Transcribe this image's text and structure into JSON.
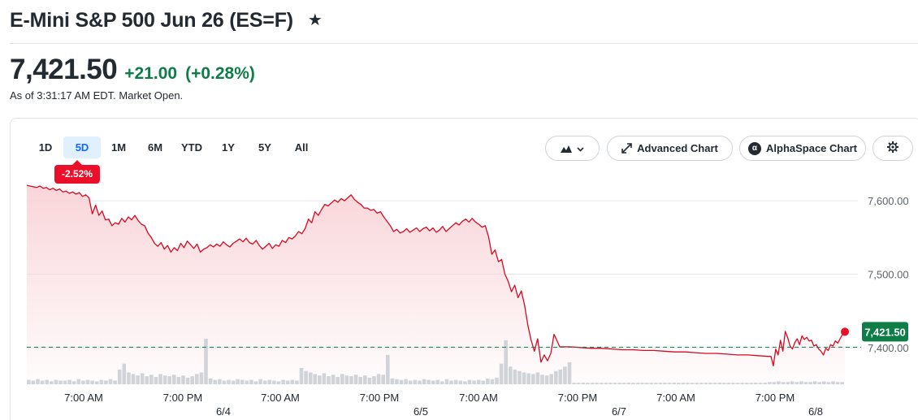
{
  "header": {
    "title": "E-Mini S&P 500 Jun 26 (ES=F)",
    "star_icon": "star-icon"
  },
  "quote": {
    "price": "7,421.50",
    "change": "+21.00",
    "change_pct": "(+0.28%)",
    "as_of": "As of 3:31:17 AM EDT. Market Open.",
    "positive_color": "#0f7d48"
  },
  "toolbar": {
    "ranges": [
      "1D",
      "5D",
      "1M",
      "6M",
      "YTD",
      "1Y",
      "5Y",
      "All"
    ],
    "active_range": "5D",
    "chart_type_icon": "mountain-chart-icon",
    "advanced_chart_label": "Advanced Chart",
    "alphaspace_chart_label": "AlphaSpace Chart",
    "settings_icon": "gear-icon"
  },
  "range_change_badge": "-2.52%",
  "chart_data": {
    "type": "area",
    "title": "",
    "ylim": [
      7350,
      7620
    ],
    "y_ticks": [
      7400,
      7500,
      7600
    ],
    "y_tick_labels": [
      "7,400.00",
      "7,500.00",
      "7,600.00"
    ],
    "x_time_labels": [
      "7:00 AM",
      "7:00 PM",
      "7:00 AM",
      "7:00 PM",
      "7:00 AM",
      "7:00 PM",
      "7:00 AM",
      "7:00 PM"
    ],
    "x_date_labels": [
      "6/4",
      "6/5",
      "6/7",
      "6/8"
    ],
    "previous_close": 7400.5,
    "last_price": 7421.5,
    "last_price_label": "7,421.50",
    "line_color": "#d60a22",
    "fill_color": "#f9d3d7",
    "reference_line_color": "#0f7d48",
    "series": [
      {
        "values": [
          7621,
          7620,
          7619,
          7618,
          7620,
          7617,
          7618,
          7615,
          7617,
          7614,
          7616,
          7612,
          7613,
          7610,
          7612,
          7609,
          7611,
          7606,
          7608,
          7604,
          7582,
          7594,
          7580,
          7586,
          7574,
          7575,
          7566,
          7570,
          7568,
          7576,
          7571,
          7578,
          7574,
          7580,
          7573,
          7568,
          7566,
          7556,
          7550,
          7542,
          7538,
          7543,
          7534,
          7539,
          7530,
          7536,
          7532,
          7542,
          7536,
          7545,
          7540,
          7535,
          7541,
          7530,
          7534,
          7536,
          7540,
          7537,
          7541,
          7538,
          7544,
          7540,
          7537,
          7542,
          7545,
          7548,
          7544,
          7549,
          7543,
          7541,
          7546,
          7539,
          7534,
          7538,
          7542,
          7535,
          7540,
          7538,
          7546,
          7543,
          7550,
          7548,
          7552,
          7558,
          7555,
          7562,
          7575,
          7570,
          7585,
          7580,
          7588,
          7595,
          7593,
          7597,
          7601,
          7598,
          7603,
          7600,
          7604,
          7608,
          7602,
          7598,
          7595,
          7590,
          7590,
          7587,
          7588,
          7583,
          7585,
          7578,
          7572,
          7566,
          7558,
          7561,
          7556,
          7558,
          7562,
          7557,
          7560,
          7563,
          7558,
          7562,
          7564,
          7559,
          7563,
          7557,
          7560,
          7565,
          7558,
          7562,
          7566,
          7570,
          7567,
          7572,
          7575,
          7571,
          7576,
          7571,
          7568,
          7564,
          7566,
          7551,
          7527,
          7533,
          7517,
          7520,
          7500,
          7490,
          7476,
          7485,
          7468,
          7477,
          7458,
          7430,
          7410,
          7395,
          7412,
          7380,
          7390,
          7382,
          7392,
          7418
        ]
      },
      {
        "values": [
          7401,
          7401,
          7400,
          7399,
          7399,
          7398,
          7397,
          7397,
          7396,
          7396,
          7395,
          7394,
          7394,
          7393,
          7392,
          7392,
          7391,
          7390,
          7390,
          7389,
          7388
        ]
      },
      {
        "values": [
          7388,
          7375,
          7398,
          7390,
          7410,
          7395,
          7422,
          7414,
          7402,
          7398,
          7407,
          7412,
          7404,
          7416,
          7411,
          7414,
          7409,
          7410,
          7402,
          7404,
          7398,
          7395,
          7390,
          7399,
          7396,
          7404,
          7402,
          7409,
          7406,
          7412,
          7418,
          7421.5
        ]
      }
    ],
    "volume": {
      "values": [
        6,
        5,
        7,
        5,
        6,
        4,
        6,
        5,
        5,
        6,
        4,
        7,
        5,
        6,
        5,
        4,
        6,
        5,
        7,
        5,
        20,
        28,
        16,
        14,
        12,
        15,
        11,
        13,
        10,
        14,
        12,
        11,
        13,
        10,
        12,
        9,
        11,
        14,
        16,
        62,
        8,
        6,
        7,
        5,
        6,
        5,
        7,
        6,
        5,
        6,
        4,
        7,
        5,
        6,
        5,
        4,
        6,
        5,
        6,
        5,
        22,
        18,
        16,
        14,
        12,
        15,
        11,
        13,
        10,
        14,
        12,
        11,
        13,
        10,
        12,
        9,
        11,
        14,
        13,
        40,
        8,
        7,
        6,
        7,
        5,
        6,
        5,
        7,
        6,
        5,
        6,
        4,
        7,
        5,
        6,
        5,
        4,
        6,
        5,
        6,
        5,
        8,
        7,
        9,
        28,
        60,
        24,
        20,
        18,
        16,
        15,
        14,
        16,
        13,
        12,
        14,
        18,
        20,
        24,
        30,
        2,
        2,
        2,
        2,
        2,
        2,
        2,
        2,
        2,
        2,
        2,
        2,
        2,
        2,
        2,
        2,
        2,
        2,
        2,
        2,
        2,
        2,
        2,
        2,
        2,
        2,
        2,
        2,
        2,
        2,
        2,
        2,
        2,
        2,
        2,
        2,
        2,
        2,
        2,
        2,
        2,
        2,
        2,
        3,
        3,
        4,
        3,
        3,
        4,
        3,
        4,
        3,
        3,
        4,
        3,
        4,
        3,
        4,
        3,
        3
      ]
    }
  }
}
